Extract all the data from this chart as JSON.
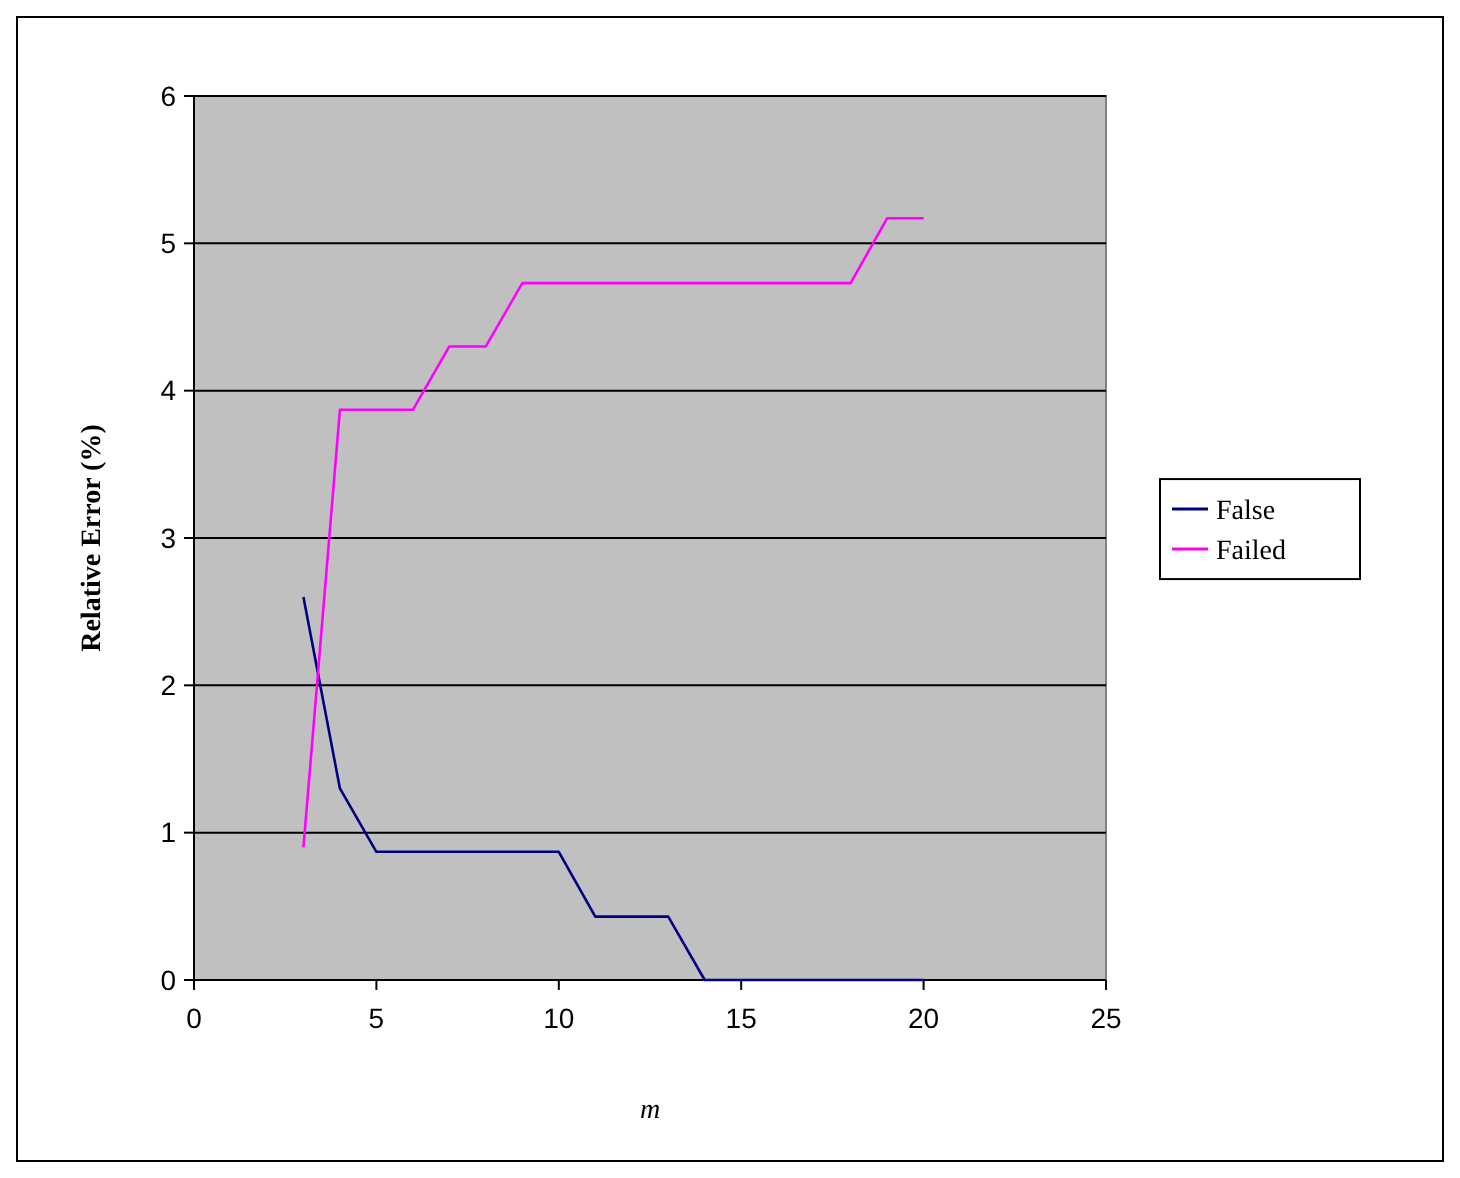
{
  "chart_data": {
    "type": "line",
    "xlabel": "m",
    "ylabel": "Relative Error (%)",
    "xlim": [
      0,
      25
    ],
    "xticks": [
      0,
      5,
      10,
      15,
      20,
      25
    ],
    "ylim": [
      0,
      6
    ],
    "yticks": [
      0,
      1,
      2,
      3,
      4,
      5,
      6
    ],
    "grid": "y",
    "legend": "right",
    "marker": "none",
    "line_style": "solid",
    "x": [
      3,
      4,
      5,
      6,
      7,
      8,
      9,
      10,
      11,
      12,
      13,
      14,
      15,
      16,
      17,
      18,
      19,
      20
    ],
    "series": [
      {
        "name": "False",
        "color": "#000080",
        "values": [
          2.6,
          1.3,
          0.87,
          0.87,
          0.87,
          0.87,
          0.87,
          0.87,
          0.43,
          0.43,
          0.43,
          0,
          0,
          0,
          0,
          0,
          0,
          0
        ]
      },
      {
        "name": "Failed",
        "color": "#ff00ff",
        "values": [
          0.9,
          3.87,
          3.87,
          3.87,
          4.3,
          4.3,
          4.73,
          4.73,
          4.73,
          4.73,
          4.73,
          4.73,
          4.73,
          4.73,
          4.73,
          4.73,
          5.17,
          5.17
        ]
      }
    ]
  }
}
